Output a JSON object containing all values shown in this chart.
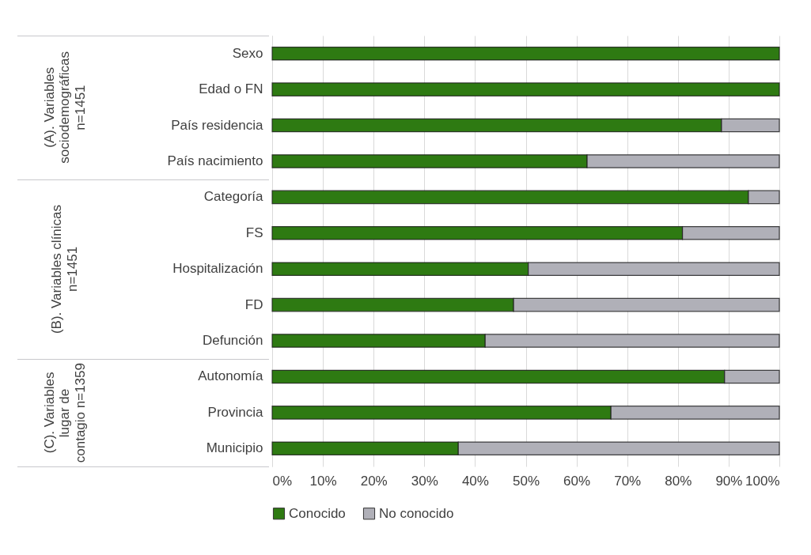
{
  "chart_data": {
    "type": "bar",
    "orientation": "horizontal",
    "stacked": true,
    "categories": [
      "Sexo",
      "Edad o FN",
      "País residencia",
      "País nacimiento",
      "Categoría",
      "FS",
      "Hospitalización",
      "FD",
      "Defunción",
      "Autonomía",
      "Provincia",
      "Municipio"
    ],
    "series": [
      {
        "name": "Conocido",
        "color": "#2e7a12",
        "values": [
          100,
          100,
          88.6,
          62.1,
          93.9,
          80.9,
          50.5,
          47.6,
          42,
          89.2,
          66.8,
          36.7
        ]
      },
      {
        "name": "No conocido",
        "color": "#b0b0b8",
        "values": [
          null,
          null,
          11.4,
          37.9,
          6.1,
          19.1,
          49.5,
          52.4,
          58,
          10.8,
          33.2,
          63.3
        ]
      }
    ],
    "xlim": [
      0,
      100
    ],
    "xticks": [
      {
        "value": 0,
        "label": "0%"
      },
      {
        "value": 10,
        "label": "10%"
      },
      {
        "value": 20,
        "label": "20%"
      },
      {
        "value": 30,
        "label": "30%"
      },
      {
        "value": 40,
        "label": "40%"
      },
      {
        "value": 50,
        "label": "50%"
      },
      {
        "value": 60,
        "label": "60%"
      },
      {
        "value": 70,
        "label": "70%"
      },
      {
        "value": 80,
        "label": "80%"
      },
      {
        "value": 90,
        "label": "90%"
      },
      {
        "value": 100,
        "label": "100%"
      }
    ],
    "grid": "x",
    "legend": "bottom",
    "annotations": [
      "(A). Variables sociodemográficas n=1451",
      "(B). Variables clínicas n=1451",
      "(C). Variables lugar de contagio n=1359"
    ]
  }
}
